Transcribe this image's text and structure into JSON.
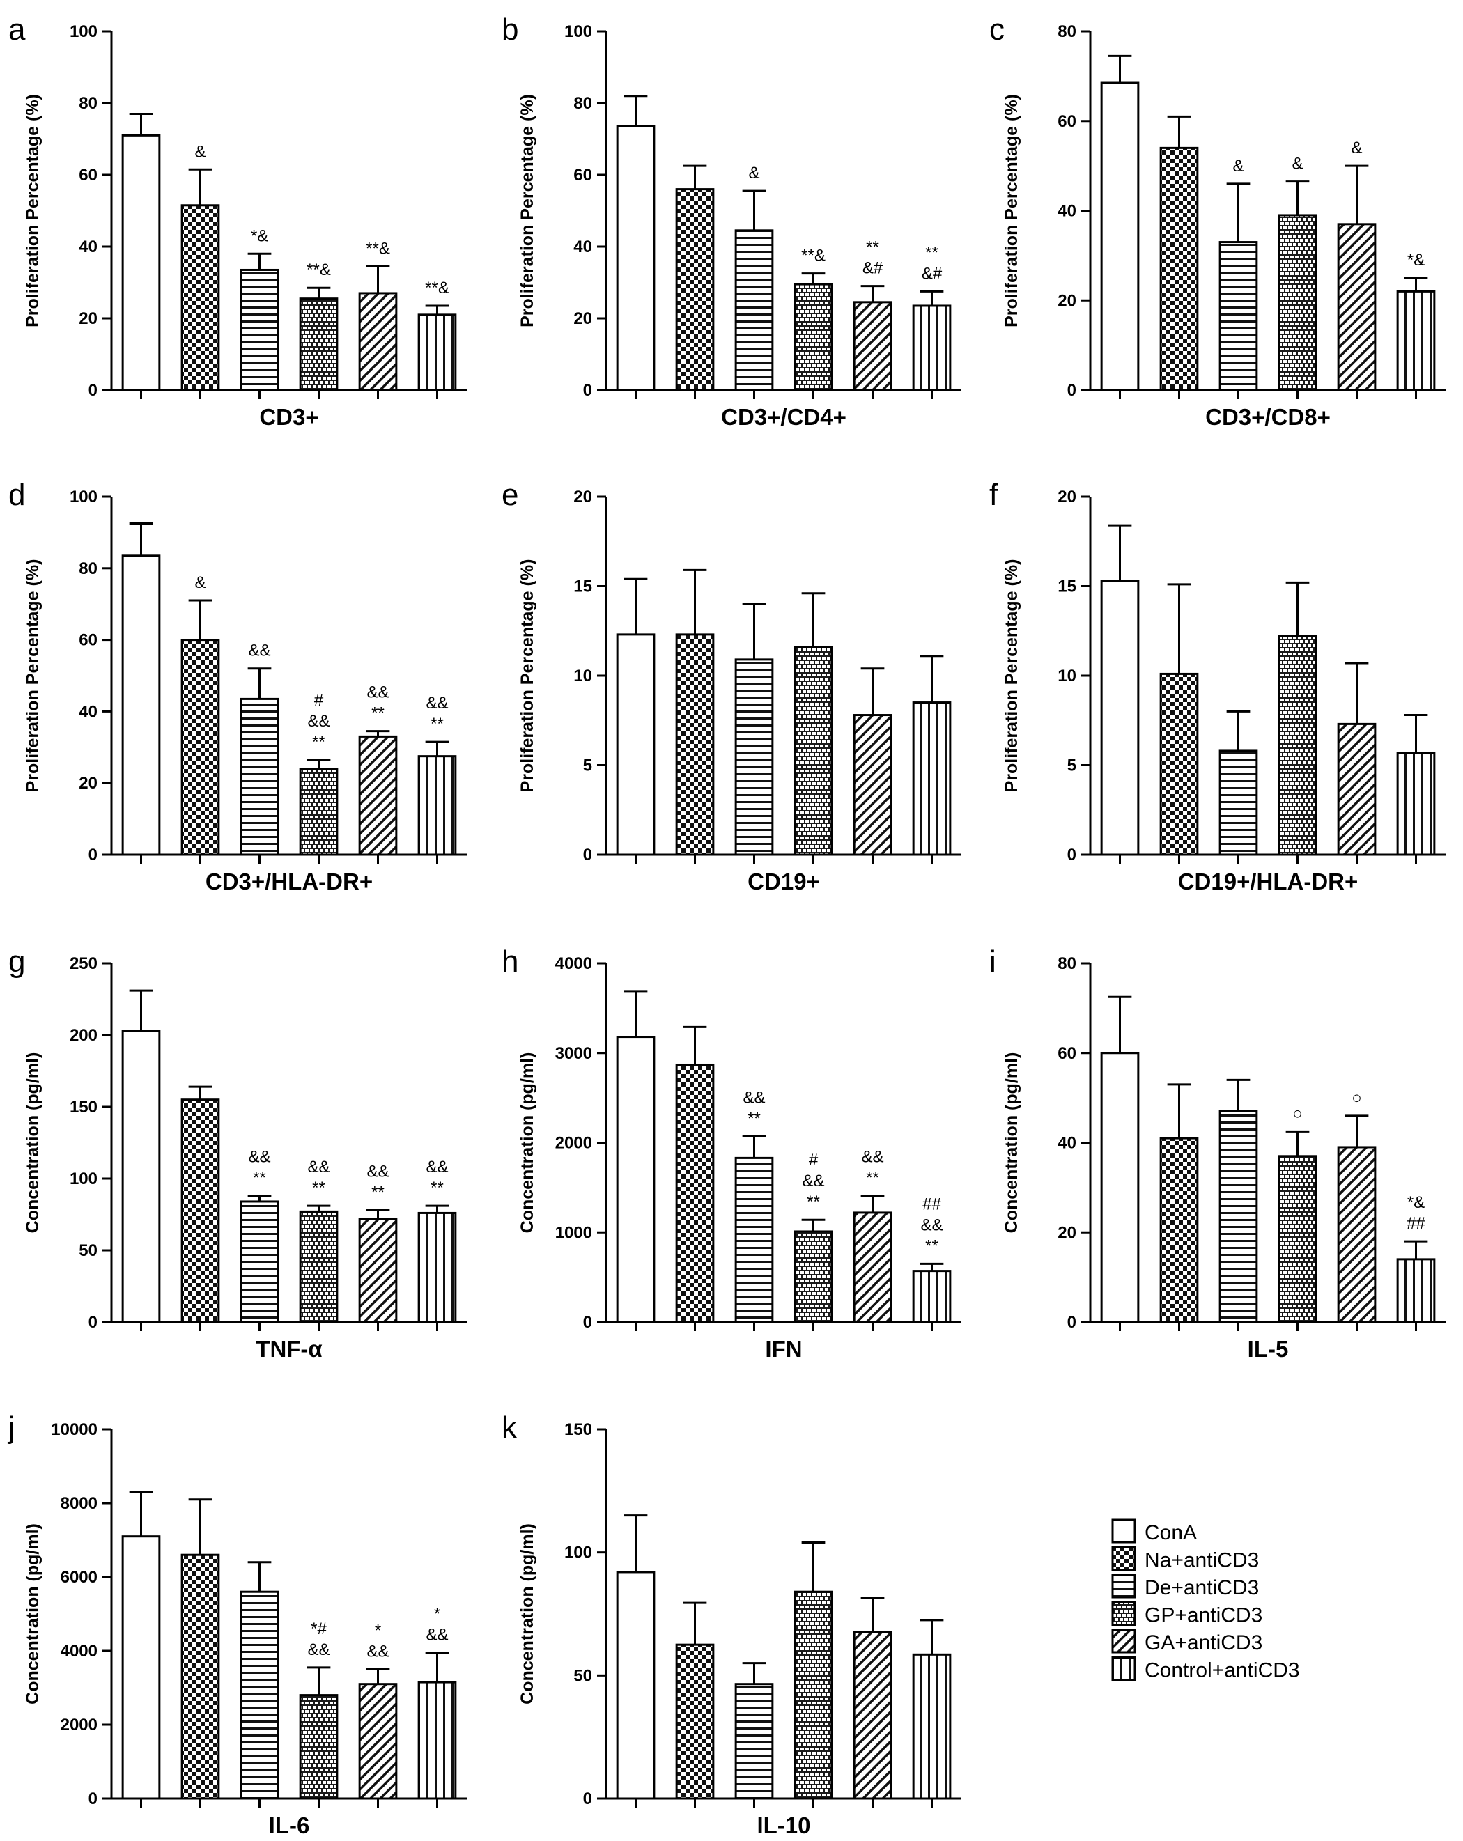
{
  "figure": {
    "series_names": [
      "ConA",
      "Na+antiCD3",
      "De+antiCD3",
      "GP+antiCD3",
      "GA+antiCD3",
      "Control+antiCD3"
    ]
  },
  "legend": {
    "entries": [
      "ConA",
      "Na+antiCD3",
      "De+antiCD3",
      "GP+antiCD3",
      "GA+antiCD3",
      "Control+antiCD3"
    ]
  },
  "chart_data": [
    {
      "type": "bar",
      "panel": "a",
      "title": "",
      "xlabel": "CD3+",
      "ylabel": "Proliferation Percentage (%)",
      "ylim": [
        0,
        100
      ],
      "yticks": [
        0,
        20,
        40,
        60,
        80,
        100
      ],
      "yticklabels": [
        "0",
        "20",
        "40",
        "60",
        "80",
        "100"
      ],
      "categories": [
        "ConA",
        "Na+antiCD3",
        "De+antiCD3",
        "GP+antiCD3",
        "GA+antiCD3",
        "Control+antiCD3"
      ],
      "values": [
        71,
        51.5,
        33.5,
        25.5,
        27,
        21
      ],
      "errors": [
        6,
        10,
        4.5,
        3,
        7.5,
        2.5
      ],
      "annotations": [
        [],
        [
          "&"
        ],
        [
          "*&"
        ],
        [
          "**&"
        ],
        [
          "**&"
        ],
        [
          "**&"
        ]
      ]
    },
    {
      "type": "bar",
      "panel": "b",
      "title": "",
      "xlabel": "CD3+/CD4+",
      "ylabel": "Proliferation Percentage (%)",
      "ylim": [
        0,
        100
      ],
      "yticks": [
        0,
        20,
        40,
        60,
        80,
        100
      ],
      "yticklabels": [
        "0",
        "20",
        "40",
        "60",
        "80",
        "100"
      ],
      "categories": [
        "ConA",
        "Na+antiCD3",
        "De+antiCD3",
        "GP+antiCD3",
        "GA+antiCD3",
        "Control+antiCD3"
      ],
      "values": [
        73.5,
        56,
        44.5,
        29.5,
        24.5,
        23.5
      ],
      "errors": [
        8.5,
        6.5,
        11,
        3,
        4.5,
        4
      ],
      "annotations": [
        [],
        [],
        [
          "&"
        ],
        [
          "**&"
        ],
        [
          "&#",
          "**"
        ],
        [
          "&#",
          "**"
        ]
      ]
    },
    {
      "type": "bar",
      "panel": "c",
      "title": "",
      "xlabel": "CD3+/CD8+",
      "ylabel": "Proliferation Percentage (%)",
      "ylim": [
        0,
        80
      ],
      "yticks": [
        0,
        20,
        40,
        60,
        80
      ],
      "yticklabels": [
        "0",
        "20",
        "40",
        "60",
        "80"
      ],
      "categories": [
        "ConA",
        "Na+antiCD3",
        "De+antiCD3",
        "GP+antiCD3",
        "GA+antiCD3",
        "Control+antiCD3"
      ],
      "values": [
        68.5,
        54,
        33,
        39,
        37,
        22
      ],
      "errors": [
        6,
        7,
        13,
        7.5,
        13,
        3
      ],
      "annotations": [
        [],
        [],
        [
          "&"
        ],
        [
          "&"
        ],
        [
          "&"
        ],
        [
          "*&"
        ]
      ]
    },
    {
      "type": "bar",
      "panel": "d",
      "title": "",
      "xlabel": "CD3+/HLA-DR+",
      "ylabel": "Proliferation Percentage (%)",
      "ylim": [
        0,
        100
      ],
      "yticks": [
        0,
        20,
        40,
        60,
        80,
        100
      ],
      "yticklabels": [
        "0",
        "20",
        "40",
        "60",
        "80",
        "100"
      ],
      "categories": [
        "ConA",
        "Na+antiCD3",
        "De+antiCD3",
        "GP+antiCD3",
        "GA+antiCD3",
        "Control+antiCD3"
      ],
      "values": [
        83.5,
        60,
        43.5,
        24,
        33,
        27.5
      ],
      "errors": [
        9,
        11,
        8.5,
        2.5,
        1.5,
        4
      ],
      "annotations": [
        [],
        [
          "&"
        ],
        [
          "&&"
        ],
        [
          "**",
          "&&",
          "#"
        ],
        [
          "**",
          "&&"
        ],
        [
          "**",
          "&&"
        ]
      ]
    },
    {
      "type": "bar",
      "panel": "e",
      "title": "",
      "xlabel": "CD19+",
      "ylabel": "Proliferation Percentage (%)",
      "ylim": [
        0,
        20
      ],
      "yticks": [
        0,
        5,
        10,
        15,
        20
      ],
      "yticklabels": [
        "0",
        "5",
        "10",
        "15",
        "20"
      ],
      "categories": [
        "ConA",
        "Na+antiCD3",
        "De+antiCD3",
        "GP+antiCD3",
        "GA+antiCD3",
        "Control+antiCD3"
      ],
      "values": [
        12.3,
        12.3,
        10.9,
        11.6,
        7.8,
        8.5
      ],
      "errors": [
        3.1,
        3.6,
        3.1,
        3,
        2.6,
        2.6
      ],
      "annotations": [
        [],
        [],
        [],
        [],
        [],
        []
      ]
    },
    {
      "type": "bar",
      "panel": "f",
      "title": "",
      "xlabel": "CD19+/HLA-DR+",
      "ylabel": "Proliferation Percentage (%)",
      "ylim": [
        0,
        20
      ],
      "yticks": [
        0,
        5,
        10,
        15,
        20
      ],
      "yticklabels": [
        "0",
        "5",
        "10",
        "15",
        "20"
      ],
      "categories": [
        "ConA",
        "Na+antiCD3",
        "De+antiCD3",
        "GP+antiCD3",
        "GA+antiCD3",
        "Control+antiCD3"
      ],
      "values": [
        15.3,
        10.1,
        5.8,
        12.2,
        7.3,
        5.7
      ],
      "errors": [
        3.1,
        5,
        2.2,
        3,
        3.4,
        2.1
      ],
      "annotations": [
        [],
        [],
        [],
        [],
        [],
        []
      ]
    },
    {
      "type": "bar",
      "panel": "g",
      "title": "",
      "xlabel": "TNF-α",
      "ylabel": "Concentration (pg/ml)",
      "ylim": [
        0,
        250
      ],
      "yticks": [
        0,
        50,
        100,
        150,
        200,
        250
      ],
      "yticklabels": [
        "0",
        "50",
        "100",
        "150",
        "200",
        "250"
      ],
      "categories": [
        "ConA",
        "Na+antiCD3",
        "De+antiCD3",
        "GP+antiCD3",
        "GA+antiCD3",
        "Control+antiCD3"
      ],
      "values": [
        203,
        155,
        84,
        77,
        72,
        76
      ],
      "errors": [
        28,
        9,
        4,
        4,
        6,
        5
      ],
      "annotations": [
        [],
        [],
        [
          "**",
          "&&"
        ],
        [
          "**",
          "&&"
        ],
        [
          "**",
          "&&"
        ],
        [
          "**",
          "&&"
        ]
      ]
    },
    {
      "type": "bar",
      "panel": "h",
      "title": "",
      "xlabel": "IFN",
      "ylabel": "Concentration (pg/ml)",
      "ylim": [
        0,
        4000
      ],
      "yticks": [
        0,
        1000,
        2000,
        3000,
        4000
      ],
      "yticklabels": [
        "0",
        "1000",
        "2000",
        "3000",
        "4000"
      ],
      "categories": [
        "ConA",
        "Na+antiCD3",
        "De+antiCD3",
        "GP+antiCD3",
        "GA+antiCD3",
        "Control+antiCD3"
      ],
      "values": [
        3180,
        2870,
        1830,
        1010,
        1220,
        570
      ],
      "errors": [
        510,
        420,
        240,
        130,
        190,
        80
      ],
      "annotations": [
        [],
        [],
        [
          "**",
          "&&"
        ],
        [
          "**",
          "&&",
          "#"
        ],
        [
          "**",
          "&&"
        ],
        [
          "**",
          "&&",
          "##"
        ]
      ]
    },
    {
      "type": "bar",
      "panel": "i",
      "title": "",
      "xlabel": "IL-5",
      "ylabel": "Concentration (pg/ml)",
      "ylim": [
        0,
        80
      ],
      "yticks": [
        0,
        20,
        40,
        60,
        80
      ],
      "yticklabels": [
        "0",
        "20",
        "40",
        "60",
        "80"
      ],
      "categories": [
        "ConA",
        "Na+antiCD3",
        "De+antiCD3",
        "GP+antiCD3",
        "GA+antiCD3",
        "Control+antiCD3"
      ],
      "values": [
        60,
        41,
        47,
        37,
        39,
        14
      ],
      "errors": [
        12.5,
        12,
        7,
        5.5,
        7,
        4
      ],
      "annotations": [
        [],
        [],
        [],
        [
          "○"
        ],
        [
          "○"
        ],
        [
          "##",
          "*&"
        ]
      ]
    },
    {
      "type": "bar",
      "panel": "j",
      "title": "",
      "xlabel": "IL-6",
      "ylabel": "Concentration (pg/ml)",
      "ylim": [
        0,
        10000
      ],
      "yticks": [
        0,
        2000,
        4000,
        6000,
        8000,
        10000
      ],
      "yticklabels": [
        "0",
        "2000",
        "4000",
        "6000",
        "8000",
        "10000"
      ],
      "categories": [
        "ConA",
        "Na+antiCD3",
        "De+antiCD3",
        "GP+antiCD3",
        "GA+antiCD3",
        "Control+antiCD3"
      ],
      "values": [
        7100,
        6600,
        5600,
        2800,
        3100,
        3150
      ],
      "errors": [
        1200,
        1500,
        800,
        750,
        400,
        800
      ],
      "annotations": [
        [],
        [],
        [],
        [
          "&&",
          "*#"
        ],
        [
          "&&",
          "*"
        ],
        [
          "&&",
          "*"
        ]
      ]
    },
    {
      "type": "bar",
      "panel": "k",
      "title": "",
      "xlabel": "IL-10",
      "ylabel": "Concentration (pg/ml)",
      "ylim": [
        0,
        150
      ],
      "yticks": [
        0,
        50,
        100,
        150
      ],
      "yticklabels": [
        "0",
        "50",
        "100",
        "150"
      ],
      "categories": [
        "ConA",
        "Na+antiCD3",
        "De+antiCD3",
        "GP+antiCD3",
        "GA+antiCD3",
        "Control+antiCD3"
      ],
      "values": [
        92,
        62.5,
        46.5,
        84,
        67.5,
        58.5
      ],
      "errors": [
        23,
        17,
        8.5,
        20,
        14,
        14
      ],
      "annotations": [
        [],
        [],
        [],
        [],
        [],
        []
      ]
    }
  ]
}
